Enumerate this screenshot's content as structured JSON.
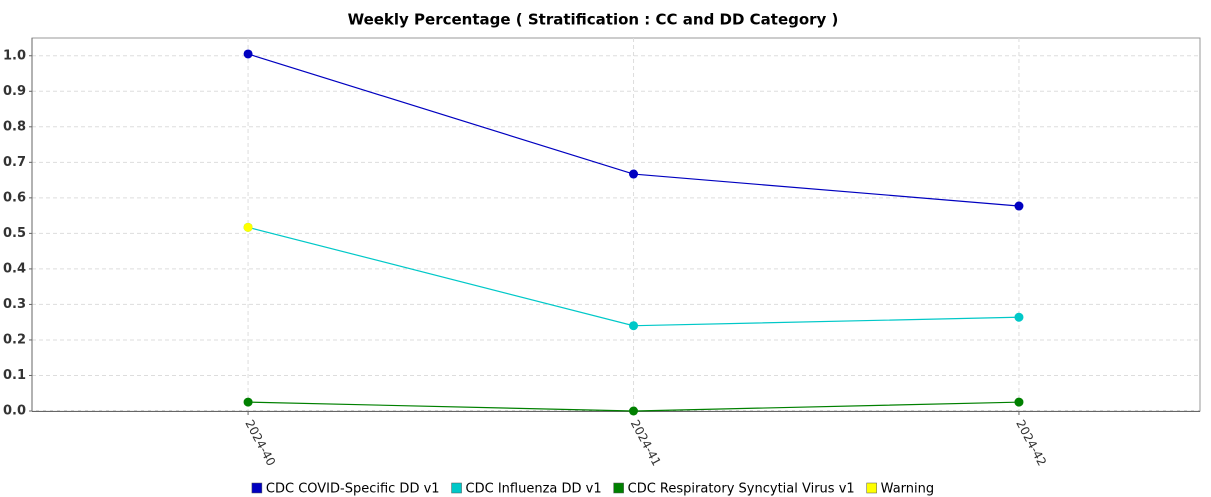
{
  "chart_data": {
    "type": "line",
    "title": "Weekly Percentage ( Stratification : CC and DD Category )",
    "categories": [
      "2024-40",
      "2024-41",
      "2024-42"
    ],
    "series": [
      {
        "name": "CDC COVID-Specific DD v1",
        "color": "#0000c0",
        "values": [
          1.005,
          0.667,
          0.577
        ]
      },
      {
        "name": "CDC Influenza DD v1",
        "color": "#00c8c8",
        "values": [
          0.517,
          0.24,
          0.264
        ]
      },
      {
        "name": "CDC Respiratory Syncytial Virus v1",
        "color": "#008000",
        "values": [
          0.025,
          0.0,
          0.025
        ]
      },
      {
        "name": "Warning",
        "color": "#ffff00",
        "values": [
          0.517,
          null,
          null
        ]
      }
    ],
    "ylim": [
      0,
      1.05
    ],
    "yticks": [
      {
        "value": 0,
        "label": "0.0"
      },
      0.1,
      0.2,
      0.3,
      0.4,
      0.5,
      0.6,
      0.7,
      0.8,
      0.9,
      {
        "value": 1,
        "label": "1.0"
      }
    ],
    "grid": true
  }
}
